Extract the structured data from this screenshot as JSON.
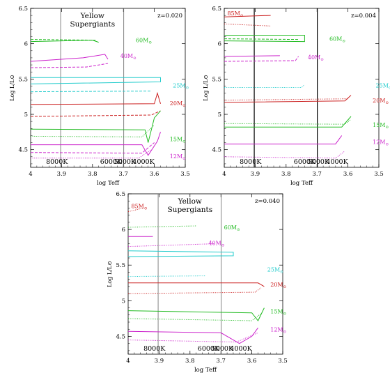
{
  "chart_data": [
    {
      "type": "line",
      "xlabel": "log Teff",
      "ylabel": "Log L/L⊙",
      "xlim": [
        4.0,
        3.5
      ],
      "ylim": [
        4.25,
        6.5
      ],
      "xticks": [
        4,
        3.9,
        3.8,
        3.7,
        3.6,
        3.5
      ],
      "yticks": [
        4.5,
        5,
        5.5,
        6,
        6.5
      ],
      "vlines_logT": [
        3.903,
        3.699
      ],
      "temperature_labels": [
        "8000K",
        "6000K",
        "5000K",
        "4000K"
      ],
      "title": "Yellow\nSupergiants",
      "z_label": "z=0.020",
      "mass_labels": [
        {
          "text": "60M⊙",
          "color": "#22bb22"
        },
        {
          "text": "40M⊙",
          "color": "#cc22cc"
        },
        {
          "text": "25M⊙",
          "color": "#22cccc"
        },
        {
          "text": "20M⊙",
          "color": "#cc2222"
        },
        {
          "text": "15M⊙",
          "color": "#22bb22"
        },
        {
          "text": "12M⊙",
          "color": "#cc22cc"
        }
      ],
      "series": [
        {
          "color": "#22bb22",
          "dash": "solid",
          "points": [
            [
              4.0,
              6.03
            ],
            [
              3.8,
              6.05
            ],
            [
              3.78,
              6.02
            ]
          ]
        },
        {
          "color": "#22bb22",
          "dash": "dashed",
          "points": [
            [
              4.0,
              6.06
            ],
            [
              3.79,
              6.05
            ]
          ]
        },
        {
          "color": "#cc22cc",
          "dash": "solid",
          "points": [
            [
              4.0,
              5.75
            ],
            [
              3.83,
              5.8
            ],
            [
              3.76,
              5.85
            ],
            [
              3.75,
              5.78
            ]
          ]
        },
        {
          "color": "#cc22cc",
          "dash": "dashed",
          "points": [
            [
              4.0,
              5.66
            ],
            [
              3.82,
              5.67
            ],
            [
              3.75,
              5.72
            ]
          ]
        },
        {
          "color": "#22cccc",
          "dash": "solid",
          "points": [
            [
              4.0,
              5.52
            ],
            [
              3.58,
              5.52
            ],
            [
              3.58,
              5.46
            ],
            [
              4.0,
              5.43
            ]
          ]
        },
        {
          "color": "#22cccc",
          "dash": "dashed",
          "points": [
            [
              4.0,
              5.32
            ],
            [
              3.61,
              5.33
            ]
          ]
        },
        {
          "color": "#cc2222",
          "dash": "solid",
          "points": [
            [
              4.0,
              5.14
            ],
            [
              3.6,
              5.15
            ],
            [
              3.59,
              5.3
            ],
            [
              3.58,
              5.15
            ]
          ]
        },
        {
          "color": "#cc2222",
          "dash": "dashed",
          "points": [
            [
              4.0,
              4.97
            ],
            [
              3.61,
              4.99
            ],
            [
              3.58,
              5.05
            ]
          ]
        },
        {
          "color": "#22bb22",
          "dash": "solid",
          "points": [
            [
              4.0,
              4.79
            ],
            [
              3.63,
              4.78
            ],
            [
              3.62,
              4.6
            ],
            [
              3.6,
              4.95
            ],
            [
              3.58,
              5.05
            ]
          ]
        },
        {
          "color": "#22bb22",
          "dash": "dotted",
          "points": [
            [
              4.0,
              4.69
            ],
            [
              3.64,
              4.68
            ],
            [
              3.6,
              4.85
            ]
          ]
        },
        {
          "color": "#cc22cc",
          "dash": "solid",
          "points": [
            [
              4.0,
              4.57
            ],
            [
              3.64,
              4.57
            ],
            [
              3.62,
              4.42
            ],
            [
              3.59,
              4.62
            ],
            [
              3.58,
              4.75
            ]
          ]
        },
        {
          "color": "#cc22cc",
          "dash": "dashed",
          "points": [
            [
              4.0,
              4.46
            ],
            [
              3.64,
              4.45
            ],
            [
              3.6,
              4.6
            ]
          ]
        },
        {
          "color": "#cc22cc",
          "dash": "dotted",
          "points": [
            [
              4.0,
              4.38
            ],
            [
              3.65,
              4.38
            ],
            [
              3.61,
              4.5
            ]
          ]
        }
      ]
    },
    {
      "type": "line",
      "xlabel": "log Teff",
      "ylabel": "Log L/L⊙",
      "xlim": [
        4.0,
        3.5
      ],
      "ylim": [
        4.25,
        6.5
      ],
      "xticks": [
        4,
        3.9,
        3.8,
        3.7,
        3.6,
        3.5
      ],
      "yticks": [
        4.5,
        5,
        5.5,
        6,
        6.5
      ],
      "vlines_logT": [
        3.903,
        3.699
      ],
      "temperature_labels": [
        "8000K",
        "6000K",
        "5000K",
        "4000K"
      ],
      "title": "",
      "z_label": "z=0.004",
      "mass_labels": [
        {
          "text": "85M⊙",
          "color": "#cc2222"
        },
        {
          "text": "60M⊙",
          "color": "#22bb22"
        },
        {
          "text": "40M⊙",
          "color": "#cc22cc"
        },
        {
          "text": "25M⊙",
          "color": "#22cccc"
        },
        {
          "text": "20M⊙",
          "color": "#cc2222"
        },
        {
          "text": "15M⊙",
          "color": "#22bb22"
        },
        {
          "text": "12M⊙",
          "color": "#cc22cc"
        }
      ],
      "series": [
        {
          "color": "#cc2222",
          "dash": "solid",
          "points": [
            [
              4.0,
              6.38
            ],
            [
              3.85,
              6.4
            ]
          ]
        },
        {
          "color": "#cc2222",
          "dash": "dotted",
          "points": [
            [
              4.0,
              6.28
            ],
            [
              3.85,
              6.25
            ]
          ]
        },
        {
          "color": "#22bb22",
          "dash": "solid",
          "points": [
            [
              4.0,
              6.12
            ],
            [
              3.74,
              6.12
            ],
            [
              3.74,
              6.03
            ],
            [
              4.0,
              6.04
            ]
          ]
        },
        {
          "color": "#22bb22",
          "dash": "dashed",
          "points": [
            [
              4.0,
              6.07
            ],
            [
              3.76,
              6.06
            ]
          ]
        },
        {
          "color": "#cc22cc",
          "dash": "solid",
          "points": [
            [
              4.0,
              5.82
            ],
            [
              3.82,
              5.83
            ]
          ]
        },
        {
          "color": "#cc22cc",
          "dash": "dashed",
          "points": [
            [
              4.0,
              5.75
            ],
            [
              3.77,
              5.76
            ],
            [
              3.76,
              5.82
            ]
          ]
        },
        {
          "color": "#22cccc",
          "dash": "dotted",
          "points": [
            [
              4.0,
              5.38
            ],
            [
              3.75,
              5.38
            ],
            [
              3.74,
              5.42
            ]
          ]
        },
        {
          "color": "#cc2222",
          "dash": "solid",
          "points": [
            [
              4.0,
              5.17
            ],
            [
              3.61,
              5.19
            ],
            [
              3.59,
              5.27
            ]
          ]
        },
        {
          "color": "#cc2222",
          "dash": "dotted",
          "points": [
            [
              4.0,
              5.2
            ],
            [
              3.6,
              5.22
            ]
          ]
        },
        {
          "color": "#22bb22",
          "dash": "solid",
          "points": [
            [
              4.0,
              4.82
            ],
            [
              3.62,
              4.82
            ],
            [
              3.59,
              4.97
            ]
          ]
        },
        {
          "color": "#22bb22",
          "dash": "dotted",
          "points": [
            [
              4.0,
              4.87
            ],
            [
              3.61,
              4.86
            ],
            [
              3.59,
              4.93
            ]
          ]
        },
        {
          "color": "#cc22cc",
          "dash": "solid",
          "points": [
            [
              4.0,
              4.58
            ],
            [
              3.64,
              4.58
            ],
            [
              3.62,
              4.7
            ]
          ]
        },
        {
          "color": "#cc22cc",
          "dash": "dotted",
          "points": [
            [
              4.0,
              4.4
            ],
            [
              3.64,
              4.38
            ],
            [
              3.61,
              4.48
            ]
          ]
        }
      ]
    },
    {
      "type": "line",
      "xlabel": "log Teff",
      "ylabel": "Log L/L⊙",
      "xlim": [
        4.0,
        3.5
      ],
      "ylim": [
        4.25,
        6.5
      ],
      "xticks": [
        4,
        3.9,
        3.8,
        3.7,
        3.6,
        3.5
      ],
      "yticks": [
        4.5,
        5,
        5.5,
        6,
        6.5
      ],
      "vlines_logT": [
        3.903,
        3.699
      ],
      "temperature_labels": [
        "8000K",
        "6000K",
        "5000K",
        "4000K"
      ],
      "title": "Yellow\nSupergiants",
      "z_label": "z=0.040",
      "mass_labels": [
        {
          "text": "85M⊙",
          "color": "#cc2222"
        },
        {
          "text": "60M⊙",
          "color": "#22bb22"
        },
        {
          "text": "40M⊙",
          "color": "#cc22cc"
        },
        {
          "text": "25M⊙",
          "color": "#22cccc"
        },
        {
          "text": "20M⊙",
          "color": "#cc2222"
        },
        {
          "text": "15M⊙",
          "color": "#22bb22"
        },
        {
          "text": "12M⊙",
          "color": "#cc22cc"
        }
      ],
      "series": [
        {
          "color": "#cc2222",
          "dash": "dotted",
          "points": [
            [
              4.0,
              6.25
            ],
            [
              3.95,
              6.3
            ]
          ]
        },
        {
          "color": "#22bb22",
          "dash": "dotted",
          "points": [
            [
              4.0,
              6.03
            ],
            [
              3.78,
              6.05
            ]
          ]
        },
        {
          "color": "#cc22cc",
          "dash": "solid",
          "points": [
            [
              4.0,
              5.9
            ],
            [
              3.92,
              5.9
            ]
          ]
        },
        {
          "color": "#cc22cc",
          "dash": "dotted",
          "points": [
            [
              4.0,
              5.76
            ],
            [
              3.72,
              5.8
            ]
          ]
        },
        {
          "color": "#22cccc",
          "dash": "solid",
          "points": [
            [
              4.0,
              5.7
            ],
            [
              3.66,
              5.68
            ],
            [
              3.66,
              5.63
            ],
            [
              4.0,
              5.62
            ]
          ]
        },
        {
          "color": "#22cccc",
          "dash": "dotted",
          "points": [
            [
              4.0,
              5.34
            ],
            [
              3.75,
              5.35
            ]
          ]
        },
        {
          "color": "#cc2222",
          "dash": "solid",
          "points": [
            [
              4.0,
              5.25
            ],
            [
              3.58,
              5.25
            ],
            [
              3.56,
              5.2
            ]
          ]
        },
        {
          "color": "#cc2222",
          "dash": "dotted",
          "points": [
            [
              4.0,
              5.1
            ],
            [
              3.59,
              5.12
            ],
            [
              3.57,
              5.18
            ]
          ]
        },
        {
          "color": "#22bb22",
          "dash": "solid",
          "points": [
            [
              4.0,
              4.86
            ],
            [
              3.6,
              4.83
            ],
            [
              3.58,
              4.72
            ],
            [
              3.56,
              4.9
            ]
          ]
        },
        {
          "color": "#22bb22",
          "dash": "dotted",
          "points": [
            [
              4.0,
              4.75
            ],
            [
              3.6,
              4.72
            ],
            [
              3.57,
              4.82
            ]
          ]
        },
        {
          "color": "#cc22cc",
          "dash": "solid",
          "points": [
            [
              4.0,
              4.57
            ],
            [
              3.7,
              4.55
            ],
            [
              3.64,
              4.4
            ],
            [
              3.6,
              4.5
            ],
            [
              3.58,
              4.62
            ]
          ]
        },
        {
          "color": "#cc22cc",
          "dash": "dotted",
          "points": [
            [
              4.0,
              4.45
            ],
            [
              3.65,
              4.42
            ],
            [
              3.58,
              4.55
            ]
          ]
        }
      ]
    }
  ]
}
